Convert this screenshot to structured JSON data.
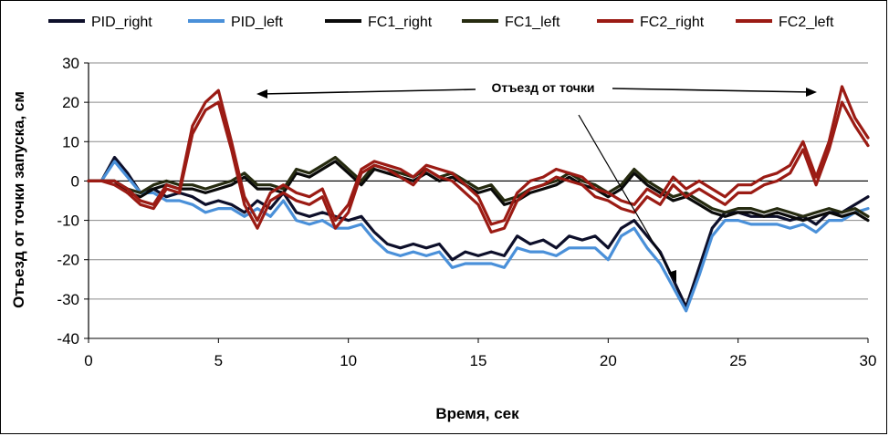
{
  "chart_data": {
    "type": "line",
    "title": "",
    "xlabel": "Время, сек",
    "ylabel": "Отъезд от точки запуска, см",
    "xlim": [
      0,
      30
    ],
    "ylim": [
      -40,
      30
    ],
    "xticks": [
      0,
      5,
      10,
      15,
      20,
      25,
      30
    ],
    "yticks": [
      30,
      20,
      10,
      0,
      -10,
      -20,
      -30,
      -40
    ],
    "grid": "horizontal",
    "legend_position": "top",
    "annotation": {
      "text": "Отъезд от точки"
    },
    "colors": {
      "PID_right": "#0d0f2a",
      "PID_left": "#4a90d9",
      "FC1_right": "#0a0a0a",
      "FC1_left": "#262b10",
      "FC2_right": "#9b1b14",
      "FC2_left": "#9b1b14"
    },
    "x": [
      0,
      0.5,
      1,
      1.5,
      2,
      2.5,
      3,
      3.5,
      4,
      4.5,
      5,
      5.5,
      6,
      6.5,
      7,
      7.5,
      8,
      8.5,
      9,
      9.5,
      10,
      10.5,
      11,
      11.5,
      12,
      12.5,
      13,
      13.5,
      14,
      14.5,
      15,
      15.5,
      16,
      16.5,
      17,
      17.5,
      18,
      18.5,
      19,
      19.5,
      20,
      20.5,
      21,
      21.5,
      22,
      22.5,
      23,
      23.5,
      24,
      24.5,
      25,
      25.5,
      26,
      26.5,
      27,
      27.5,
      28,
      28.5,
      29,
      29.5,
      30
    ],
    "series": [
      {
        "name": "PID_right",
        "values": [
          0,
          0,
          6,
          2,
          -3,
          -2,
          -4,
          -3,
          -4,
          -6,
          -5,
          -6,
          -8,
          -5,
          -7,
          -3,
          -8,
          -9,
          -8,
          -9,
          -10,
          -9,
          -13,
          -16,
          -17,
          -16,
          -17,
          -16,
          -20,
          -18,
          -19,
          -18,
          -19,
          -14,
          -16,
          -15,
          -17,
          -14,
          -15,
          -14,
          -17,
          -12,
          -10,
          -14,
          -18,
          -25,
          -32,
          -22,
          -12,
          -8,
          -8,
          -9,
          -9,
          -9,
          -10,
          -9,
          -11,
          -8,
          -8,
          -6,
          -4
        ]
      },
      {
        "name": "PID_left",
        "values": [
          0,
          0,
          5,
          1,
          -3,
          -3,
          -5,
          -5,
          -6,
          -8,
          -7,
          -7,
          -9,
          -7,
          -9,
          -5,
          -10,
          -11,
          -10,
          -12,
          -12,
          -11,
          -15,
          -18,
          -19,
          -18,
          -19,
          -18,
          -22,
          -21,
          -21,
          -21,
          -22,
          -17,
          -18,
          -18,
          -19,
          -17,
          -17,
          -17,
          -20,
          -14,
          -12,
          -17,
          -21,
          -27,
          -33,
          -24,
          -14,
          -10,
          -10,
          -11,
          -11,
          -11,
          -12,
          -11,
          -13,
          -10,
          -10,
          -8,
          -7
        ]
      },
      {
        "name": "FC1_right",
        "values": [
          0,
          0,
          0,
          -3,
          -4,
          -2,
          -1,
          -2,
          -2,
          -3,
          -2,
          -1,
          1,
          -2,
          -2,
          -3,
          2,
          1,
          3,
          5,
          2,
          -1,
          3,
          2,
          1,
          0,
          2,
          0,
          1,
          -1,
          -3,
          -2,
          -6,
          -5,
          -3,
          -2,
          -1,
          1,
          -1,
          -2,
          -4,
          -2,
          2,
          -1,
          -3,
          -5,
          -4,
          -6,
          -8,
          -9,
          -8,
          -8,
          -9,
          -8,
          -9,
          -10,
          -9,
          -8,
          -9,
          -8,
          -10
        ]
      },
      {
        "name": "FC1_left",
        "values": [
          0,
          0,
          0,
          -2,
          -3,
          -1,
          0,
          -1,
          -1,
          -2,
          -1,
          0,
          2,
          -1,
          -1,
          -2,
          3,
          2,
          4,
          6,
          3,
          0,
          4,
          3,
          2,
          1,
          3,
          1,
          2,
          0,
          -2,
          -1,
          -5,
          -4,
          -2,
          -1,
          0,
          2,
          0,
          -1,
          -3,
          -1,
          3,
          0,
          -2,
          -4,
          -3,
          -5,
          -7,
          -8,
          -7,
          -7,
          -8,
          -7,
          -8,
          -9,
          -8,
          -7,
          -8,
          -7,
          -9
        ]
      },
      {
        "name": "FC2_right",
        "values": [
          0,
          0,
          -1,
          -3,
          -6,
          -7,
          -2,
          -3,
          12,
          18,
          20,
          8,
          -6,
          -12,
          -5,
          -3,
          -5,
          -6,
          -4,
          -12,
          -8,
          2,
          4,
          3,
          1,
          -1,
          3,
          1,
          0,
          -3,
          -6,
          -13,
          -12,
          -5,
          -2,
          -1,
          1,
          0,
          -1,
          -4,
          -5,
          -7,
          -8,
          -4,
          -6,
          -1,
          -4,
          -2,
          -4,
          -6,
          -3,
          -3,
          -1,
          0,
          2,
          8,
          -1,
          8,
          20,
          14,
          9
        ]
      },
      {
        "name": "FC2_left",
        "values": [
          0,
          0,
          0,
          -2,
          -5,
          -6,
          -1,
          -2,
          14,
          20,
          23,
          10,
          -4,
          -10,
          -3,
          -1,
          -3,
          -4,
          -2,
          -10,
          -6,
          3,
          5,
          4,
          3,
          1,
          4,
          3,
          2,
          -1,
          -4,
          -11,
          -10,
          -3,
          0,
          1,
          3,
          2,
          1,
          -2,
          -3,
          -5,
          -6,
          -2,
          -4,
          1,
          -2,
          0,
          -2,
          -4,
          -1,
          -1,
          1,
          2,
          4,
          10,
          1,
          10,
          24,
          16,
          11
        ]
      }
    ]
  }
}
